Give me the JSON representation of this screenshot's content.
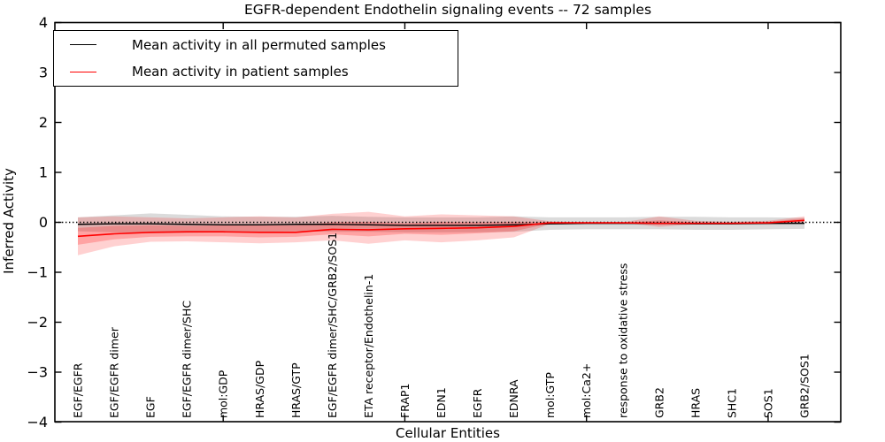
{
  "figure": {
    "title": "EGFR-dependent Endothelin signaling events -- 72 samples",
    "xlabel": "Cellular Entities",
    "ylabel": "Inferred Activity"
  },
  "legend": {
    "position": "upper left",
    "entries": [
      {
        "label": "Mean activity in all permuted samples",
        "color": "#000000"
      },
      {
        "label": "Mean activity in patient samples",
        "color": "#ff0000"
      }
    ]
  },
  "chart_data": {
    "type": "line",
    "title": "EGFR-dependent Endothelin signaling events -- 72 samples",
    "xlabel": "Cellular Entities",
    "ylabel": "Inferred Activity",
    "ylim": [
      -4,
      4
    ],
    "yticks": [
      4,
      3,
      2,
      1,
      0,
      -1,
      -2,
      -3,
      -4
    ],
    "ytick_labels": [
      "4",
      "3",
      "2",
      "1",
      "0",
      "−1",
      "−2",
      "−3",
      "−4"
    ],
    "xtick_marks_at_indices": [
      4,
      9,
      14,
      19
    ],
    "grid": false,
    "legend_position": "upper left",
    "zero_line": {
      "y": 0,
      "style": "dotted",
      "color": "#000000"
    },
    "categories": [
      "EGF/EGFR",
      "EGF/EGFR dimer",
      "EGF",
      "EGF/EGFR dimer/SHC",
      "mol:GDP",
      "HRAS/GDP",
      "HRAS/GTP",
      "EGF/EGFR dimer/SHC/GRB2/SOS1",
      "ETA receptor/Endothelin-1",
      "FRAP1",
      "EDN1",
      "EGFR",
      "EDNRA",
      "mol:GTP",
      "mol:Ca2+",
      "response to oxidative stress",
      "GRB2",
      "HRAS",
      "SHC1",
      "SOS1",
      "GRB2/SOS1"
    ],
    "series": [
      {
        "name": "Mean activity in all permuted samples",
        "color": "#000000",
        "band_color": "rgba(0,0,0,0.14)",
        "values": [
          -0.04,
          -0.03,
          -0.03,
          -0.04,
          -0.05,
          -0.05,
          -0.04,
          -0.04,
          -0.05,
          -0.06,
          -0.06,
          -0.06,
          -0.05,
          -0.03,
          -0.02,
          -0.02,
          -0.02,
          -0.03,
          -0.03,
          -0.02,
          -0.02
        ],
        "band_upper": [
          0.1,
          0.14,
          0.18,
          0.15,
          0.12,
          0.11,
          0.11,
          0.13,
          0.11,
          0.1,
          0.1,
          0.1,
          0.12,
          0.1,
          0.1,
          0.1,
          0.11,
          0.11,
          0.1,
          0.1,
          0.09
        ],
        "band_lower": [
          -0.18,
          -0.2,
          -0.22,
          -0.21,
          -0.2,
          -0.19,
          -0.18,
          -0.19,
          -0.19,
          -0.2,
          -0.2,
          -0.2,
          -0.19,
          -0.15,
          -0.14,
          -0.14,
          -0.14,
          -0.15,
          -0.15,
          -0.14,
          -0.13
        ]
      },
      {
        "name": "Mean activity in patient samples",
        "color": "#ff0000",
        "band_color": "rgba(255,0,0,0.18)",
        "band2_color": "rgba(255,0,0,0.22)",
        "values": [
          -0.28,
          -0.23,
          -0.2,
          -0.19,
          -0.19,
          -0.2,
          -0.2,
          -0.14,
          -0.15,
          -0.13,
          -0.12,
          -0.11,
          -0.08,
          -0.01,
          -0.01,
          -0.01,
          -0.02,
          -0.02,
          -0.02,
          -0.01,
          0.04
        ],
        "band_upper": [
          0.1,
          0.12,
          0.1,
          0.08,
          0.1,
          0.12,
          0.1,
          0.17,
          0.21,
          0.12,
          0.16,
          0.14,
          0.12,
          0.02,
          0.0,
          0.0,
          0.12,
          0.03,
          0.01,
          0.03,
          0.12
        ],
        "band_lower": [
          -0.66,
          -0.48,
          -0.39,
          -0.38,
          -0.4,
          -0.42,
          -0.4,
          -0.36,
          -0.43,
          -0.36,
          -0.4,
          -0.36,
          -0.3,
          -0.03,
          -0.01,
          -0.01,
          -0.09,
          -0.04,
          -0.02,
          -0.04,
          -0.03
        ],
        "band2_upper": [
          -0.11,
          -0.07,
          -0.06,
          -0.07,
          -0.06,
          -0.06,
          -0.06,
          0.0,
          0.01,
          -0.02,
          0.01,
          0.0,
          0.01,
          0.0,
          -0.01,
          -0.01,
          0.04,
          0.0,
          -0.01,
          0.01,
          0.08
        ],
        "band2_lower": [
          -0.45,
          -0.34,
          -0.29,
          -0.28,
          -0.28,
          -0.3,
          -0.29,
          -0.24,
          -0.28,
          -0.23,
          -0.25,
          -0.22,
          -0.18,
          -0.02,
          -0.01,
          -0.01,
          -0.05,
          -0.03,
          -0.02,
          -0.03,
          0.01
        ]
      }
    ]
  }
}
